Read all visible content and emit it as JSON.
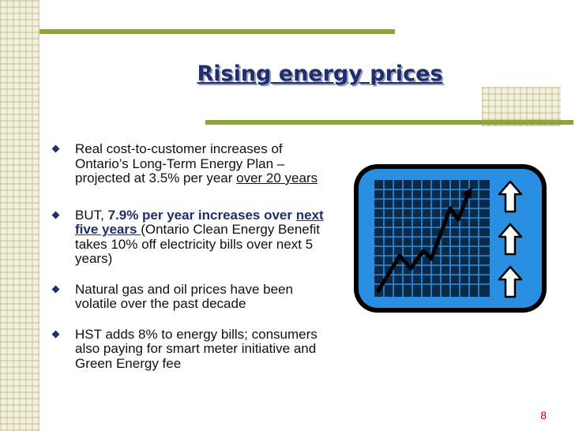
{
  "slide": {
    "title": "Rising energy prices",
    "page_number": "8",
    "bullets": [
      {
        "text_a": "Real cost-to-customer increases of Ontario’s Long-Term Energy Plan – projected at 3.5% per year ",
        "link": "over 20 years"
      },
      {
        "lead": " BUT, ",
        "emph_a": "7.9% per year increases over ",
        "emph_link": "next five years ",
        "rest": "(Ontario Clean Energy Benefit takes 10% off electricity bills over next 5 years)"
      },
      {
        "text": "Natural gas and oil prices have been volatile over the past decade"
      },
      {
        "text": "HST adds 8% to energy bills; consumers also paying for smart meter initiative and Green Energy fee"
      }
    ]
  },
  "graphic": {
    "icons": [
      "monitor-graph-icon",
      "up-arrow-icon"
    ],
    "colors": {
      "frame": "#000000",
      "screen": "#2a8fe0",
      "grid": "#0a2a4a",
      "arrow_fill": "#ffffff"
    }
  },
  "theme": {
    "accent_bar": "#8da43a",
    "title_color": "#1f2f6e",
    "page_number_color": "#c00000"
  }
}
